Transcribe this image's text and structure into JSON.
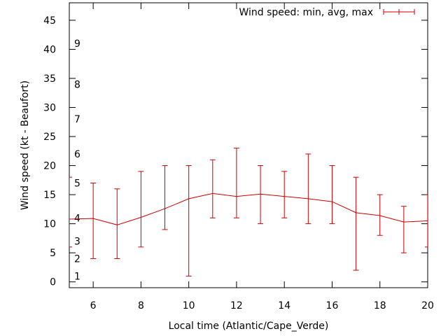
{
  "chart_data": {
    "type": "line",
    "title": "",
    "xlabel": "Local time (Atlantic/Cape_Verde)",
    "ylabel": "Wind speed (kt - Beaufort)",
    "xlim": [
      5,
      20
    ],
    "ylim": [
      -1,
      48
    ],
    "x_ticks": [
      6,
      8,
      10,
      12,
      14,
      16,
      18,
      20
    ],
    "y_ticks": [
      0,
      5,
      10,
      15,
      20,
      25,
      30,
      35,
      40,
      45
    ],
    "beaufort_labels": [
      {
        "label": "1",
        "kt": 1
      },
      {
        "label": "2",
        "kt": 4
      },
      {
        "label": "3",
        "kt": 7
      },
      {
        "label": "4",
        "kt": 11
      },
      {
        "label": "5",
        "kt": 17
      },
      {
        "label": "6",
        "kt": 22
      },
      {
        "label": "7",
        "kt": 28
      },
      {
        "label": "8",
        "kt": 34
      },
      {
        "label": "9",
        "kt": 41
      }
    ],
    "grid": false,
    "legend_position": "top-right",
    "series": [
      {
        "name": "Wind speed: min, avg, max",
        "color": "#cc0000",
        "x": [
          5,
          6,
          7,
          8,
          9,
          10,
          11,
          12,
          13,
          14,
          15,
          16,
          17,
          18,
          19,
          20
        ],
        "avg": [
          10.8,
          10.9,
          9.8,
          11.1,
          12.6,
          14.3,
          15.2,
          14.7,
          15.1,
          14.7,
          14.3,
          13.8,
          11.9,
          11.4,
          10.3,
          10.5
        ],
        "min": [
          6,
          4,
          4,
          6,
          9,
          1,
          11,
          11,
          10,
          11,
          10,
          10,
          2,
          8,
          5,
          6
        ],
        "max": [
          18,
          17,
          16,
          19,
          20,
          20,
          21,
          23,
          20,
          19,
          22,
          20,
          18,
          15,
          13,
          15
        ]
      }
    ]
  }
}
